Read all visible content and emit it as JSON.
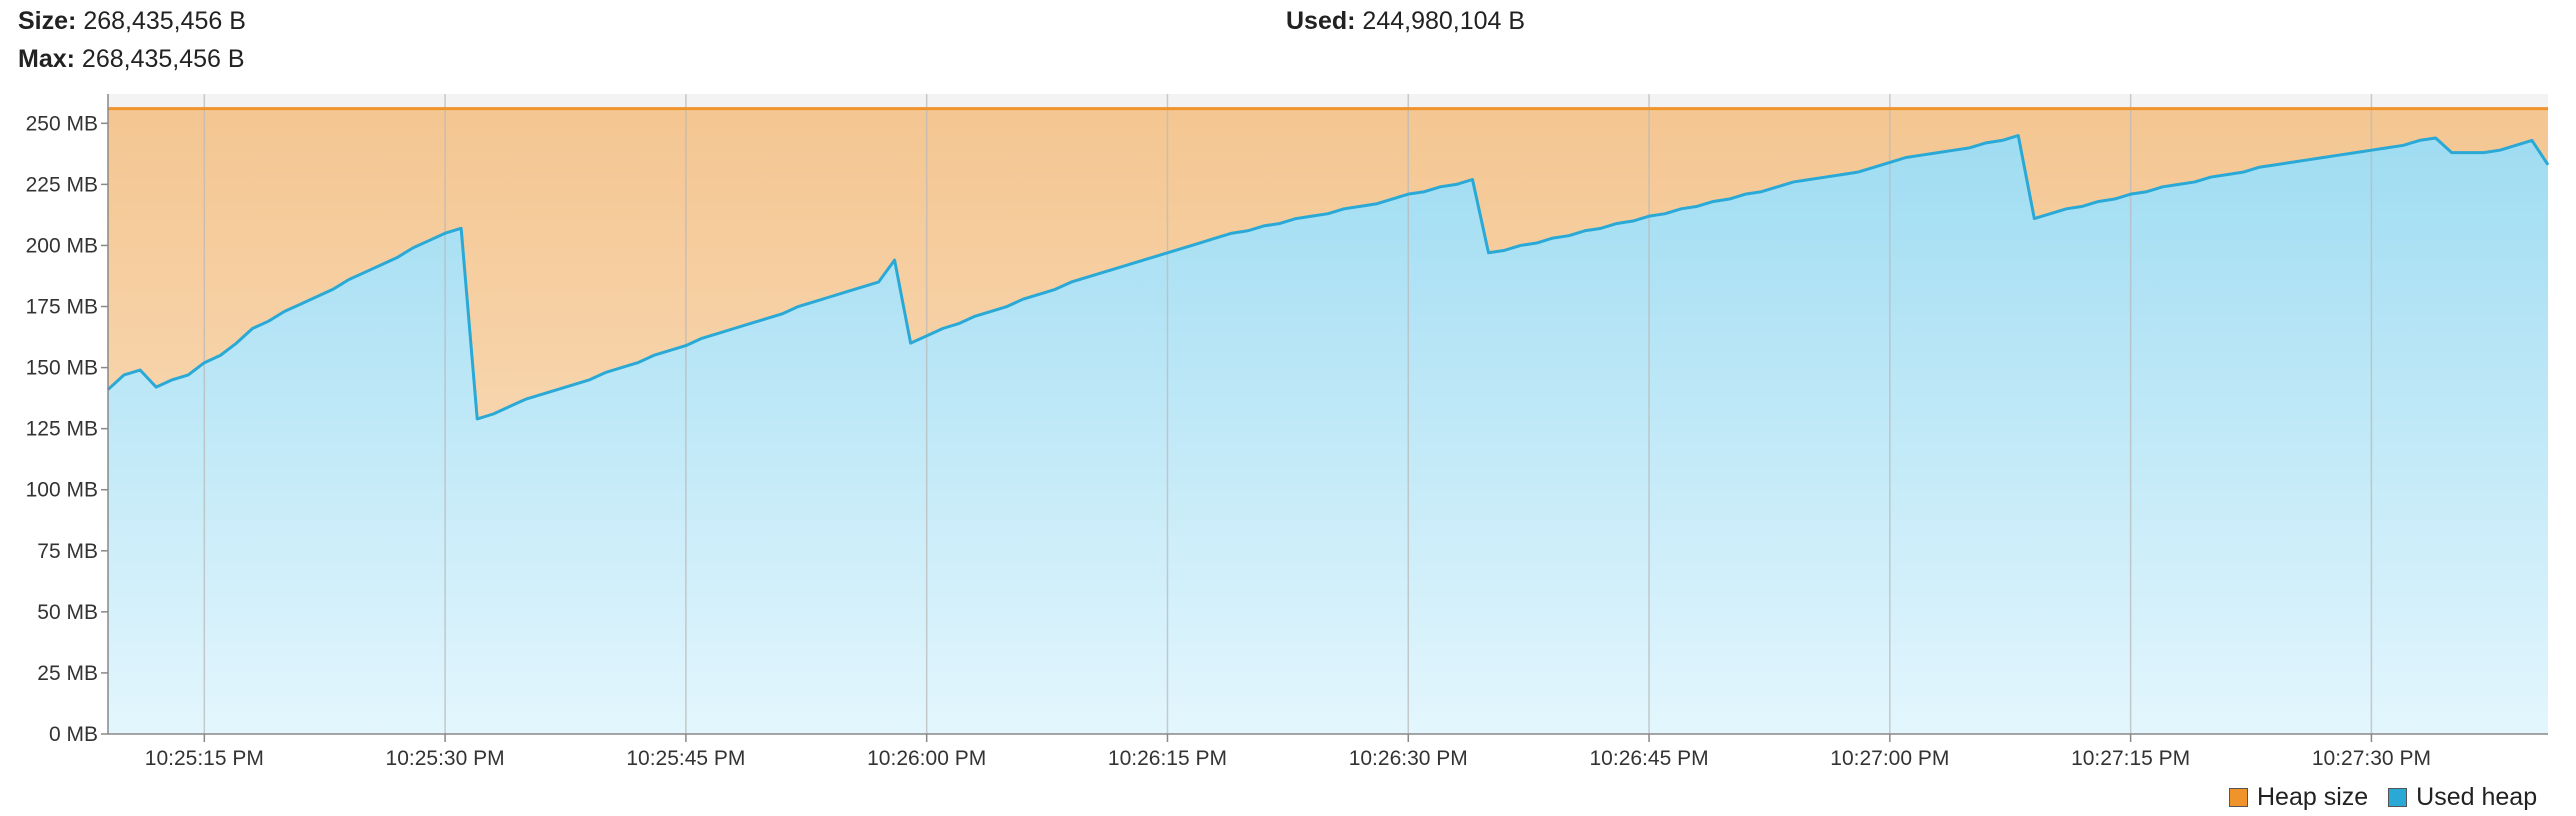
{
  "stats": {
    "size_label": "Size:",
    "size_value": "268,435,456 B",
    "max_label": "Max:",
    "max_value": "268,435,456 B",
    "used_label": "Used:",
    "used_value": "244,980,104 B"
  },
  "legend": [
    {
      "name": "Heap size",
      "color": "#f0932b"
    },
    {
      "name": "Used heap",
      "color": "#2ba9d6"
    }
  ],
  "chart_data": {
    "type": "area",
    "title": "",
    "xlabel": "",
    "ylabel": "",
    "ylim": [
      0,
      262
    ],
    "y_ticks": [
      {
        "value": 0,
        "label": "0 MB"
      },
      {
        "value": 25,
        "label": "25 MB"
      },
      {
        "value": 50,
        "label": "50 MB"
      },
      {
        "value": 75,
        "label": "75 MB"
      },
      {
        "value": 100,
        "label": "100 MB"
      },
      {
        "value": 125,
        "label": "125 MB"
      },
      {
        "value": 150,
        "label": "150 MB"
      },
      {
        "value": 175,
        "label": "175 MB"
      },
      {
        "value": 200,
        "label": "200 MB"
      },
      {
        "value": 225,
        "label": "225 MB"
      },
      {
        "value": 250,
        "label": "250 MB"
      }
    ],
    "xlim": [
      "10:25:09 PM",
      "10:27:41 PM"
    ],
    "x_ticks": [
      "10:25:15 PM",
      "10:25:30 PM",
      "10:25:45 PM",
      "10:26:00 PM",
      "10:26:15 PM",
      "10:26:30 PM",
      "10:26:45 PM",
      "10:27:00 PM",
      "10:27:15 PM",
      "10:27:30 PM"
    ],
    "grid": true,
    "legend_position": "bottom-right",
    "series": [
      {
        "name": "Heap size",
        "color": "#f0932b",
        "points": [
          [
            "10:25:09 PM",
            256
          ],
          [
            "10:27:41 PM",
            256
          ]
        ]
      },
      {
        "name": "Used heap",
        "color": "#2ba9d6",
        "points": [
          [
            "10:25:09 PM",
            141
          ],
          [
            "10:25:10 PM",
            147
          ],
          [
            "10:25:11 PM",
            149
          ],
          [
            "10:25:12 PM",
            142
          ],
          [
            "10:25:13 PM",
            145
          ],
          [
            "10:25:14 PM",
            147
          ],
          [
            "10:25:15 PM",
            152
          ],
          [
            "10:25:16 PM",
            155
          ],
          [
            "10:25:17 PM",
            160
          ],
          [
            "10:25:18 PM",
            166
          ],
          [
            "10:25:19 PM",
            169
          ],
          [
            "10:25:20 PM",
            173
          ],
          [
            "10:25:21 PM",
            176
          ],
          [
            "10:25:22 PM",
            179
          ],
          [
            "10:25:23 PM",
            182
          ],
          [
            "10:25:24 PM",
            186
          ],
          [
            "10:25:25 PM",
            189
          ],
          [
            "10:25:26 PM",
            192
          ],
          [
            "10:25:27 PM",
            195
          ],
          [
            "10:25:28 PM",
            199
          ],
          [
            "10:25:29 PM",
            202
          ],
          [
            "10:25:30 PM",
            205
          ],
          [
            "10:25:31 PM",
            207
          ],
          [
            "10:25:32 PM",
            129
          ],
          [
            "10:25:33 PM",
            131
          ],
          [
            "10:25:34 PM",
            134
          ],
          [
            "10:25:35 PM",
            137
          ],
          [
            "10:25:36 PM",
            139
          ],
          [
            "10:25:37 PM",
            141
          ],
          [
            "10:25:38 PM",
            143
          ],
          [
            "10:25:39 PM",
            145
          ],
          [
            "10:25:40 PM",
            148
          ],
          [
            "10:25:41 PM",
            150
          ],
          [
            "10:25:42 PM",
            152
          ],
          [
            "10:25:43 PM",
            155
          ],
          [
            "10:25:44 PM",
            157
          ],
          [
            "10:25:45 PM",
            159
          ],
          [
            "10:25:46 PM",
            162
          ],
          [
            "10:25:47 PM",
            164
          ],
          [
            "10:25:48 PM",
            166
          ],
          [
            "10:25:49 PM",
            168
          ],
          [
            "10:25:50 PM",
            170
          ],
          [
            "10:25:51 PM",
            172
          ],
          [
            "10:25:52 PM",
            175
          ],
          [
            "10:25:53 PM",
            177
          ],
          [
            "10:25:54 PM",
            179
          ],
          [
            "10:25:55 PM",
            181
          ],
          [
            "10:25:56 PM",
            183
          ],
          [
            "10:25:57 PM",
            185
          ],
          [
            "10:25:58 PM",
            194
          ],
          [
            "10:25:59 PM",
            160
          ],
          [
            "10:26:00 PM",
            163
          ],
          [
            "10:26:01 PM",
            166
          ],
          [
            "10:26:02 PM",
            168
          ],
          [
            "10:26:03 PM",
            171
          ],
          [
            "10:26:04 PM",
            173
          ],
          [
            "10:26:05 PM",
            175
          ],
          [
            "10:26:06 PM",
            178
          ],
          [
            "10:26:07 PM",
            180
          ],
          [
            "10:26:08 PM",
            182
          ],
          [
            "10:26:09 PM",
            185
          ],
          [
            "10:26:10 PM",
            187
          ],
          [
            "10:26:11 PM",
            189
          ],
          [
            "10:26:12 PM",
            191
          ],
          [
            "10:26:13 PM",
            193
          ],
          [
            "10:26:14 PM",
            195
          ],
          [
            "10:26:15 PM",
            197
          ],
          [
            "10:26:16 PM",
            199
          ],
          [
            "10:26:17 PM",
            201
          ],
          [
            "10:26:18 PM",
            203
          ],
          [
            "10:26:19 PM",
            205
          ],
          [
            "10:26:20 PM",
            206
          ],
          [
            "10:26:21 PM",
            208
          ],
          [
            "10:26:22 PM",
            209
          ],
          [
            "10:26:23 PM",
            211
          ],
          [
            "10:26:24 PM",
            212
          ],
          [
            "10:26:25 PM",
            213
          ],
          [
            "10:26:26 PM",
            215
          ],
          [
            "10:26:27 PM",
            216
          ],
          [
            "10:26:28 PM",
            217
          ],
          [
            "10:26:29 PM",
            219
          ],
          [
            "10:26:30 PM",
            221
          ],
          [
            "10:26:31 PM",
            222
          ],
          [
            "10:26:32 PM",
            224
          ],
          [
            "10:26:33 PM",
            225
          ],
          [
            "10:26:34 PM",
            227
          ],
          [
            "10:26:35 PM",
            197
          ],
          [
            "10:26:36 PM",
            198
          ],
          [
            "10:26:37 PM",
            200
          ],
          [
            "10:26:38 PM",
            201
          ],
          [
            "10:26:39 PM",
            203
          ],
          [
            "10:26:40 PM",
            204
          ],
          [
            "10:26:41 PM",
            206
          ],
          [
            "10:26:42 PM",
            207
          ],
          [
            "10:26:43 PM",
            209
          ],
          [
            "10:26:44 PM",
            210
          ],
          [
            "10:26:45 PM",
            212
          ],
          [
            "10:26:46 PM",
            213
          ],
          [
            "10:26:47 PM",
            215
          ],
          [
            "10:26:48 PM",
            216
          ],
          [
            "10:26:49 PM",
            218
          ],
          [
            "10:26:50 PM",
            219
          ],
          [
            "10:26:51 PM",
            221
          ],
          [
            "10:26:52 PM",
            222
          ],
          [
            "10:26:53 PM",
            224
          ],
          [
            "10:26:54 PM",
            226
          ],
          [
            "10:26:55 PM",
            227
          ],
          [
            "10:26:56 PM",
            228
          ],
          [
            "10:26:57 PM",
            229
          ],
          [
            "10:26:58 PM",
            230
          ],
          [
            "10:26:59 PM",
            232
          ],
          [
            "10:27:00 PM",
            234
          ],
          [
            "10:27:01 PM",
            236
          ],
          [
            "10:27:02 PM",
            237
          ],
          [
            "10:27:03 PM",
            238
          ],
          [
            "10:27:04 PM",
            239
          ],
          [
            "10:27:05 PM",
            240
          ],
          [
            "10:27:06 PM",
            242
          ],
          [
            "10:27:07 PM",
            243
          ],
          [
            "10:27:08 PM",
            245
          ],
          [
            "10:27:09 PM",
            211
          ],
          [
            "10:27:10 PM",
            213
          ],
          [
            "10:27:11 PM",
            215
          ],
          [
            "10:27:12 PM",
            216
          ],
          [
            "10:27:13 PM",
            218
          ],
          [
            "10:27:14 PM",
            219
          ],
          [
            "10:27:15 PM",
            221
          ],
          [
            "10:27:16 PM",
            222
          ],
          [
            "10:27:17 PM",
            224
          ],
          [
            "10:27:18 PM",
            225
          ],
          [
            "10:27:19 PM",
            226
          ],
          [
            "10:27:20 PM",
            228
          ],
          [
            "10:27:21 PM",
            229
          ],
          [
            "10:27:22 PM",
            230
          ],
          [
            "10:27:23 PM",
            232
          ],
          [
            "10:27:24 PM",
            233
          ],
          [
            "10:27:25 PM",
            234
          ],
          [
            "10:27:26 PM",
            235
          ],
          [
            "10:27:27 PM",
            236
          ],
          [
            "10:27:28 PM",
            237
          ],
          [
            "10:27:29 PM",
            238
          ],
          [
            "10:27:30 PM",
            239
          ],
          [
            "10:27:31 PM",
            240
          ],
          [
            "10:27:32 PM",
            241
          ],
          [
            "10:27:33 PM",
            243
          ],
          [
            "10:27:34 PM",
            244
          ],
          [
            "10:27:35 PM",
            238
          ],
          [
            "10:27:36 PM",
            238
          ],
          [
            "10:27:37 PM",
            238
          ],
          [
            "10:27:38 PM",
            239
          ],
          [
            "10:27:39 PM",
            241
          ],
          [
            "10:27:40 PM",
            243
          ],
          [
            "10:27:41 PM",
            233
          ]
        ]
      }
    ]
  }
}
